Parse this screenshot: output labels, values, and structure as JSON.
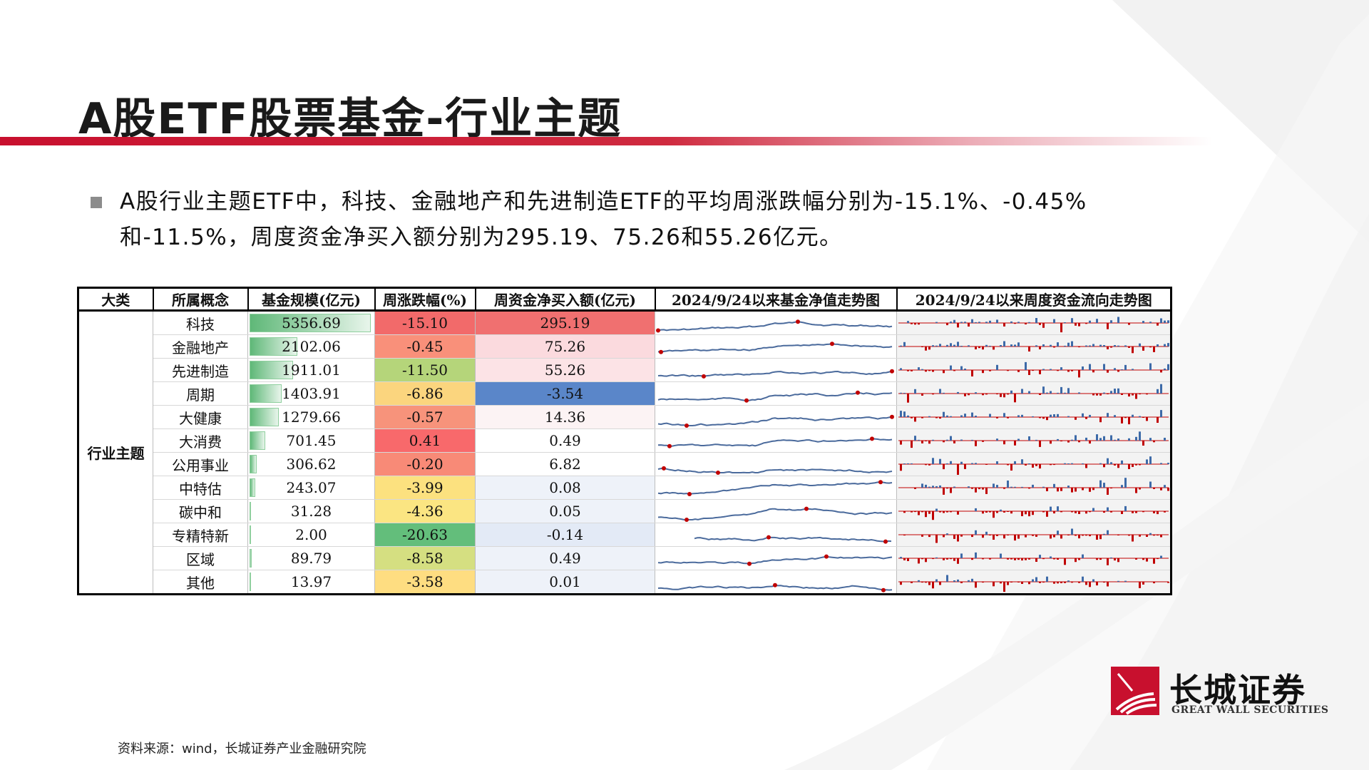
{
  "title": "A股ETF股票基金-行业主题",
  "summary": "A股行业主题ETF中，科技、金融地产和先进制造ETF的平均周涨跌幅分别为-15.1%、-0.45%和-11.5%，周度资金净买入额分别为295.19、75.26和55.26亿元。",
  "table": {
    "headers": [
      "大类",
      "所属概念",
      "基金规模(亿元)",
      "周涨跌幅(%)",
      "周资金净买入额(亿元)",
      "2024/9/24以来基金净值走势图",
      "2024/9/24以来周度资金流向走势图"
    ],
    "category": "行业主题",
    "rows": [
      {
        "concept": "科技",
        "scale": "5356.69",
        "change": "-15.10",
        "flow": "295.19",
        "change_color": "#f26a6a",
        "flow_color": "#f07070"
      },
      {
        "concept": "金融地产",
        "scale": "2102.06",
        "change": "-0.45",
        "flow": "75.26",
        "change_color": "#f9907a",
        "flow_color": "#fbdade"
      },
      {
        "concept": "先进制造",
        "scale": "1911.01",
        "change": "-11.50",
        "flow": "55.26",
        "change_color": "#b5d57a",
        "flow_color": "#fce3e6"
      },
      {
        "concept": "周期",
        "scale": "1403.91",
        "change": "-6.86",
        "flow": "-3.54",
        "change_color": "#fbd57e",
        "flow_color": "#5a86c9"
      },
      {
        "concept": "大健康",
        "scale": "1279.66",
        "change": "-0.57",
        "flow": "14.36",
        "change_color": "#f7937b",
        "flow_color": "#fcf3f4"
      },
      {
        "concept": "大消费",
        "scale": "701.45",
        "change": "0.41",
        "flow": "0.49",
        "change_color": "#f8696b",
        "flow_color": "#ffffff"
      },
      {
        "concept": "公用事业",
        "scale": "306.62",
        "change": "-0.20",
        "flow": "6.82",
        "change_color": "#f88a77",
        "flow_color": "#ffffff"
      },
      {
        "concept": "中特估",
        "scale": "243.07",
        "change": "-3.99",
        "flow": "0.08",
        "change_color": "#fce17f",
        "flow_color": "#eef2f9"
      },
      {
        "concept": "碳中和",
        "scale": "31.28",
        "change": "-4.36",
        "flow": "0.05",
        "change_color": "#fbe582",
        "flow_color": "#eef2f9"
      },
      {
        "concept": "专精特新",
        "scale": "2.00",
        "change": "-20.63",
        "flow": "-0.14",
        "change_color": "#63be7b",
        "flow_color": "#e3eaf6"
      },
      {
        "concept": "区域",
        "scale": "89.79",
        "change": "-8.58",
        "flow": "0.49",
        "change_color": "#d5df81",
        "flow_color": "#eef2f9"
      },
      {
        "concept": "其他",
        "scale": "13.97",
        "change": "-3.58",
        "flow": "0.01",
        "change_color": "#fedd81",
        "flow_color": "#eef2f9"
      }
    ]
  },
  "source": "资料来源：wind，长城证券产业金融研究院",
  "logo": {
    "cn": "长城证券",
    "en": "GREAT WALL SECURITIES"
  },
  "colors": {
    "brand_red": "#c8102e",
    "line_blue": "#4a6a9c",
    "flow_red": "#c00000",
    "flow_blue": "#3d6aa8"
  }
}
